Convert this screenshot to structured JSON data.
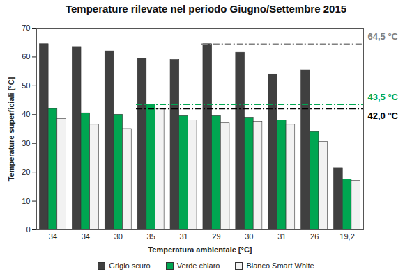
{
  "chart_data": {
    "type": "bar",
    "title": "Temperature rilevate nel periodo Giugno/Settembre 2015",
    "x_label": "Temperatura ambientale [°C]",
    "y_label": "Temperature superficiali [°C]",
    "categories": [
      "34",
      "34",
      "30",
      "35",
      "31",
      "29",
      "30",
      "31",
      "26",
      "19,2"
    ],
    "series": [
      {
        "name": "Grigio scuro",
        "color": "#404040",
        "values": [
          64.5,
          63.5,
          62,
          59.5,
          59,
          64.5,
          61.5,
          54,
          55.5,
          21.5
        ]
      },
      {
        "name": "Verde chiaro",
        "color": "#00a651",
        "values": [
          42,
          40.5,
          40,
          43.5,
          39.5,
          39.5,
          39,
          38,
          34,
          17.5
        ]
      },
      {
        "name": "Bianco Smart White",
        "color": "#f2f2f2",
        "values": [
          38.5,
          36.5,
          35,
          42,
          38,
          37,
          37.5,
          36.5,
          30.5,
          17
        ]
      }
    ],
    "ylim": [
      0,
      70
    ],
    "yticks": [
      0,
      10,
      20,
      30,
      40,
      50,
      60,
      70
    ],
    "grid": false,
    "legend": "bottom",
    "reference_lines": [
      {
        "value": 64.5,
        "label": "64,5 °C",
        "series": "Grigio scuro",
        "color": "#808080"
      },
      {
        "value": 43.5,
        "label": "43,5 °C",
        "series": "Verde chiaro",
        "color": "#00a651"
      },
      {
        "value": 42.0,
        "label": "42,0 °C",
        "series": "Bianco Smart White",
        "color": "#000000"
      }
    ]
  }
}
